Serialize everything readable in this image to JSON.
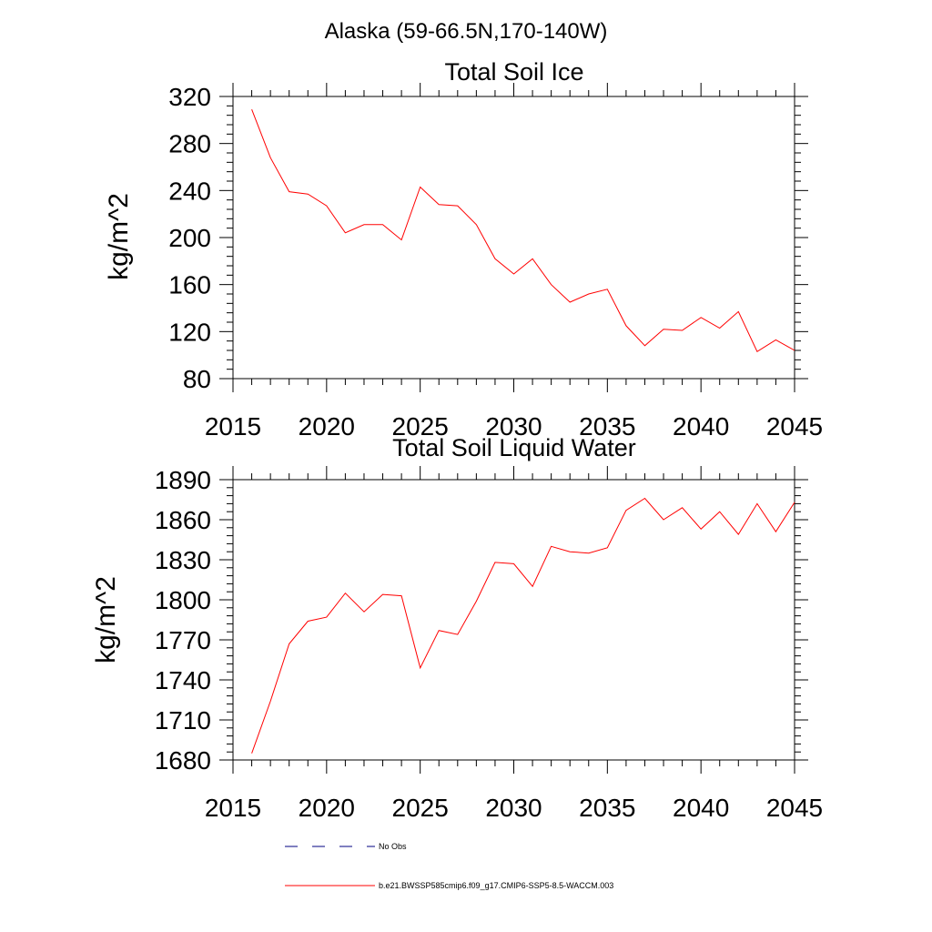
{
  "main_title": "Alaska (59-66.5N,170-140W)",
  "chart_data": [
    {
      "type": "line",
      "title": "Total Soil Ice",
      "xlabel": "",
      "ylabel": "kg/m^2",
      "xlim": [
        2015,
        2045
      ],
      "ylim": [
        80,
        320
      ],
      "xticks": [
        2015,
        2020,
        2025,
        2030,
        2035,
        2040,
        2045
      ],
      "yticks": [
        80,
        120,
        160,
        200,
        240,
        280,
        320
      ],
      "grid": false,
      "x": [
        2016,
        2017,
        2018,
        2019,
        2020,
        2021,
        2022,
        2023,
        2024,
        2025,
        2026,
        2027,
        2028,
        2029,
        2030,
        2031,
        2032,
        2033,
        2034,
        2035,
        2036,
        2037,
        2038,
        2039,
        2040,
        2041,
        2042,
        2043,
        2044,
        2045
      ],
      "series": [
        {
          "name": "b.e21.BWSSP585cmip6.f09_g17.CMIP6-SSP5-8.5-WACCM.003",
          "color": "#ff0000",
          "values": [
            309,
            268,
            239,
            237,
            227,
            204,
            211,
            211,
            198,
            243,
            228,
            227,
            211,
            182,
            169,
            182,
            160,
            145,
            152,
            156,
            125,
            108,
            122,
            121,
            132,
            123,
            137,
            103,
            113,
            104
          ]
        }
      ]
    },
    {
      "type": "line",
      "title": "Total Soil Liquid Water",
      "xlabel": "",
      "ylabel": "kg/m^2",
      "xlim": [
        2015,
        2045
      ],
      "ylim": [
        1680,
        1890
      ],
      "xticks": [
        2015,
        2020,
        2025,
        2030,
        2035,
        2040,
        2045
      ],
      "yticks": [
        1680,
        1710,
        1740,
        1770,
        1800,
        1830,
        1860,
        1890
      ],
      "grid": false,
      "x": [
        2016,
        2017,
        2018,
        2019,
        2020,
        2021,
        2022,
        2023,
        2024,
        2025,
        2026,
        2027,
        2028,
        2029,
        2030,
        2031,
        2032,
        2033,
        2034,
        2035,
        2036,
        2037,
        2038,
        2039,
        2040,
        2041,
        2042,
        2043,
        2044,
        2045
      ],
      "series": [
        {
          "name": "b.e21.BWSSP585cmip6.f09_g17.CMIP6-SSP5-8.5-WACCM.003",
          "color": "#ff0000",
          "values": [
            1685,
            1724,
            1767,
            1784,
            1787,
            1805,
            1791,
            1804,
            1803,
            1749,
            1777,
            1774,
            1799,
            1828,
            1827,
            1810,
            1840,
            1836,
            1835,
            1839,
            1867,
            1876,
            1860,
            1869,
            1853,
            1866,
            1849,
            1872,
            1851,
            1873
          ]
        }
      ]
    }
  ],
  "legend": {
    "placement": "bottom",
    "entries": [
      {
        "label": "No Obs",
        "style": "dashed",
        "color": "#000080"
      },
      {
        "label": "b.e21.BWSSP585cmip6.f09_g17.CMIP6-SSP5-8.5-WACCM.003",
        "style": "solid",
        "color": "#ff0000"
      }
    ]
  }
}
